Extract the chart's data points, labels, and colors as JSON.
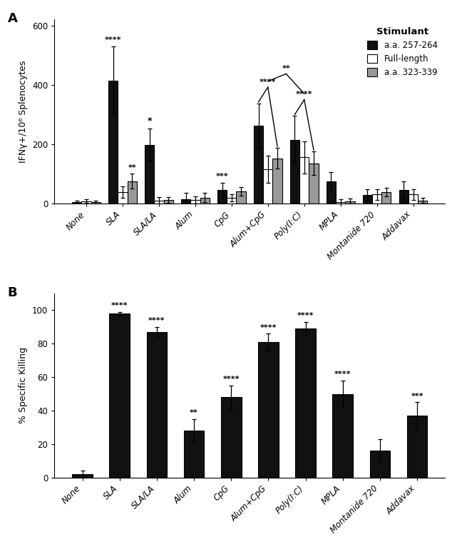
{
  "panel_a": {
    "categories": [
      "None",
      "SLA",
      "SLA/LA",
      "Alum",
      "CpG",
      "Alum+CpG",
      "Poly(I:C)",
      "MPLA",
      "Montanide 720",
      "Addavax"
    ],
    "black_vals": [
      5,
      415,
      198,
      15,
      45,
      262,
      215,
      75,
      28,
      45
    ],
    "black_err": [
      5,
      115,
      55,
      20,
      25,
      75,
      80,
      30,
      20,
      30
    ],
    "white_vals": [
      8,
      38,
      10,
      12,
      20,
      115,
      155,
      5,
      30,
      30
    ],
    "white_err": [
      5,
      20,
      12,
      12,
      12,
      45,
      55,
      8,
      18,
      18
    ],
    "gray_vals": [
      5,
      75,
      12,
      20,
      40,
      152,
      135,
      8,
      38,
      10
    ],
    "gray_err": [
      5,
      25,
      10,
      15,
      15,
      35,
      40,
      8,
      15,
      8
    ],
    "ylabel": "IFNγ+/10⁶ Splenocytes",
    "ylim": [
      0,
      620
    ],
    "yticks": [
      0,
      200,
      400,
      600
    ],
    "legend_title": "Stimulant",
    "legend_labels": [
      "a.a. 257-264",
      "Full-length",
      "a.a. 323-339"
    ],
    "bar_colors": [
      "#111111",
      "#ffffff",
      "#999999"
    ],
    "bar_edgecolors": [
      "#000000",
      "#000000",
      "#000000"
    ],
    "sig_sla_black": "****",
    "sig_sla_gray": "**",
    "sig_slala_black": "*",
    "sig_cpg_black": "***",
    "alum_cpg_idx": 5,
    "poly_ic_idx": 6,
    "sig_alum_cpg_bracket": "****",
    "sig_poly_ic_bracket": "****",
    "sig_between_brackets": "**"
  },
  "panel_b": {
    "categories": [
      "None",
      "SLA",
      "SLA/LA",
      "Alum",
      "CpG",
      "Alum+CpG",
      "Poly(I:C)",
      "MPLA",
      "Montanide 720",
      "Addavax"
    ],
    "vals": [
      2,
      98,
      87,
      28,
      48,
      81,
      89,
      50,
      16,
      37
    ],
    "errs": [
      2,
      1,
      3,
      7,
      7,
      5,
      4,
      8,
      7,
      8
    ],
    "ylabel": "% Specific Killing",
    "ylim": [
      0,
      110
    ],
    "yticks": [
      0,
      20,
      40,
      60,
      80,
      100
    ],
    "significance": [
      "",
      "****",
      "****",
      "**",
      "****",
      "****",
      "****",
      "****",
      "",
      "***"
    ],
    "bar_color": "#111111"
  }
}
